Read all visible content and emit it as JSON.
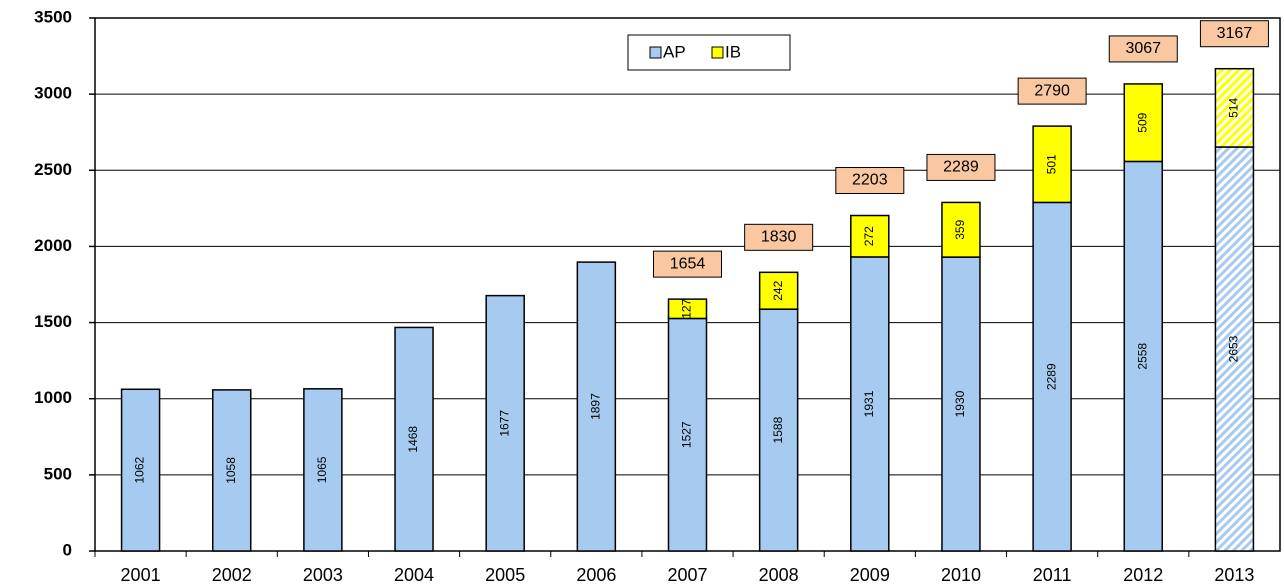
{
  "chart_data": {
    "type": "stacked_bar",
    "categories": [
      "2001",
      "2002",
      "2003",
      "2004",
      "2005",
      "2006",
      "2007",
      "2008",
      "2009",
      "2010",
      "2011",
      "2012",
      "2013"
    ],
    "series": [
      {
        "name": "AP",
        "color": "#a6caf0",
        "values": [
          1062,
          1058,
          1065,
          1468,
          1677,
          1897,
          1527,
          1588,
          1931,
          1930,
          2289,
          2558,
          2653
        ]
      },
      {
        "name": "IB",
        "color": "#ffff00",
        "values": [
          null,
          null,
          null,
          null,
          null,
          null,
          127,
          242,
          272,
          359,
          501,
          509,
          514
        ]
      }
    ],
    "totals": [
      null,
      null,
      null,
      null,
      null,
      null,
      1654,
      1830,
      2203,
      2289,
      2790,
      3067,
      3167
    ],
    "totals_color": "#fac8a0",
    "hatched_index": 12,
    "ylim": [
      0,
      3500
    ],
    "yticks": [
      0,
      500,
      1000,
      1500,
      2000,
      2500,
      3000,
      3500
    ],
    "grid": true,
    "legend": "top"
  }
}
